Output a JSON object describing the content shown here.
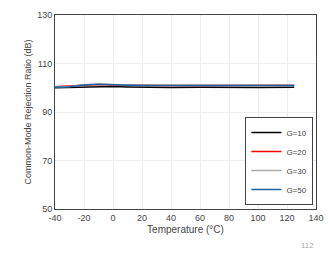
{
  "chart_data": {
    "type": "line",
    "xlabel": "Temperature (°C)",
    "ylabel": "Common-Mode Rejection Ratio (dB)",
    "x": [
      -40,
      -30,
      -20,
      -10,
      0,
      10,
      20,
      40,
      60,
      80,
      100,
      125
    ],
    "series": [
      {
        "name": "G=10",
        "color": "#000000",
        "values": [
          100.0,
          100.1,
          100.5,
          100.6,
          100.5,
          100.3,
          100.2,
          100.1,
          100.2,
          100.1,
          100.1,
          100.2
        ]
      },
      {
        "name": "G=20",
        "color": "#ff0000",
        "values": [
          100.4,
          100.6,
          101.0,
          101.3,
          101.1,
          101.0,
          100.9,
          100.9,
          100.9,
          100.9,
          100.9,
          101.0
        ]
      },
      {
        "name": "G=30",
        "color": "#aaaaaa",
        "values": [
          100.3,
          100.5,
          101.2,
          101.5,
          101.3,
          101.1,
          101.0,
          101.0,
          101.0,
          100.9,
          100.9,
          101.0
        ]
      },
      {
        "name": "G=50",
        "color": "#2060a0",
        "values": [
          100.2,
          100.4,
          101.1,
          101.4,
          101.2,
          101.0,
          100.9,
          100.9,
          100.9,
          100.8,
          100.8,
          100.9
        ]
      }
    ],
    "xlim": [
      -40,
      140
    ],
    "ylim": [
      50,
      130
    ],
    "xticks": [
      -40,
      -20,
      0,
      20,
      40,
      60,
      80,
      100,
      120,
      140
    ],
    "yticks": [
      50,
      70,
      90,
      110,
      130
    ],
    "grid": true,
    "legend": "lower right",
    "annotations": [
      "112"
    ]
  }
}
